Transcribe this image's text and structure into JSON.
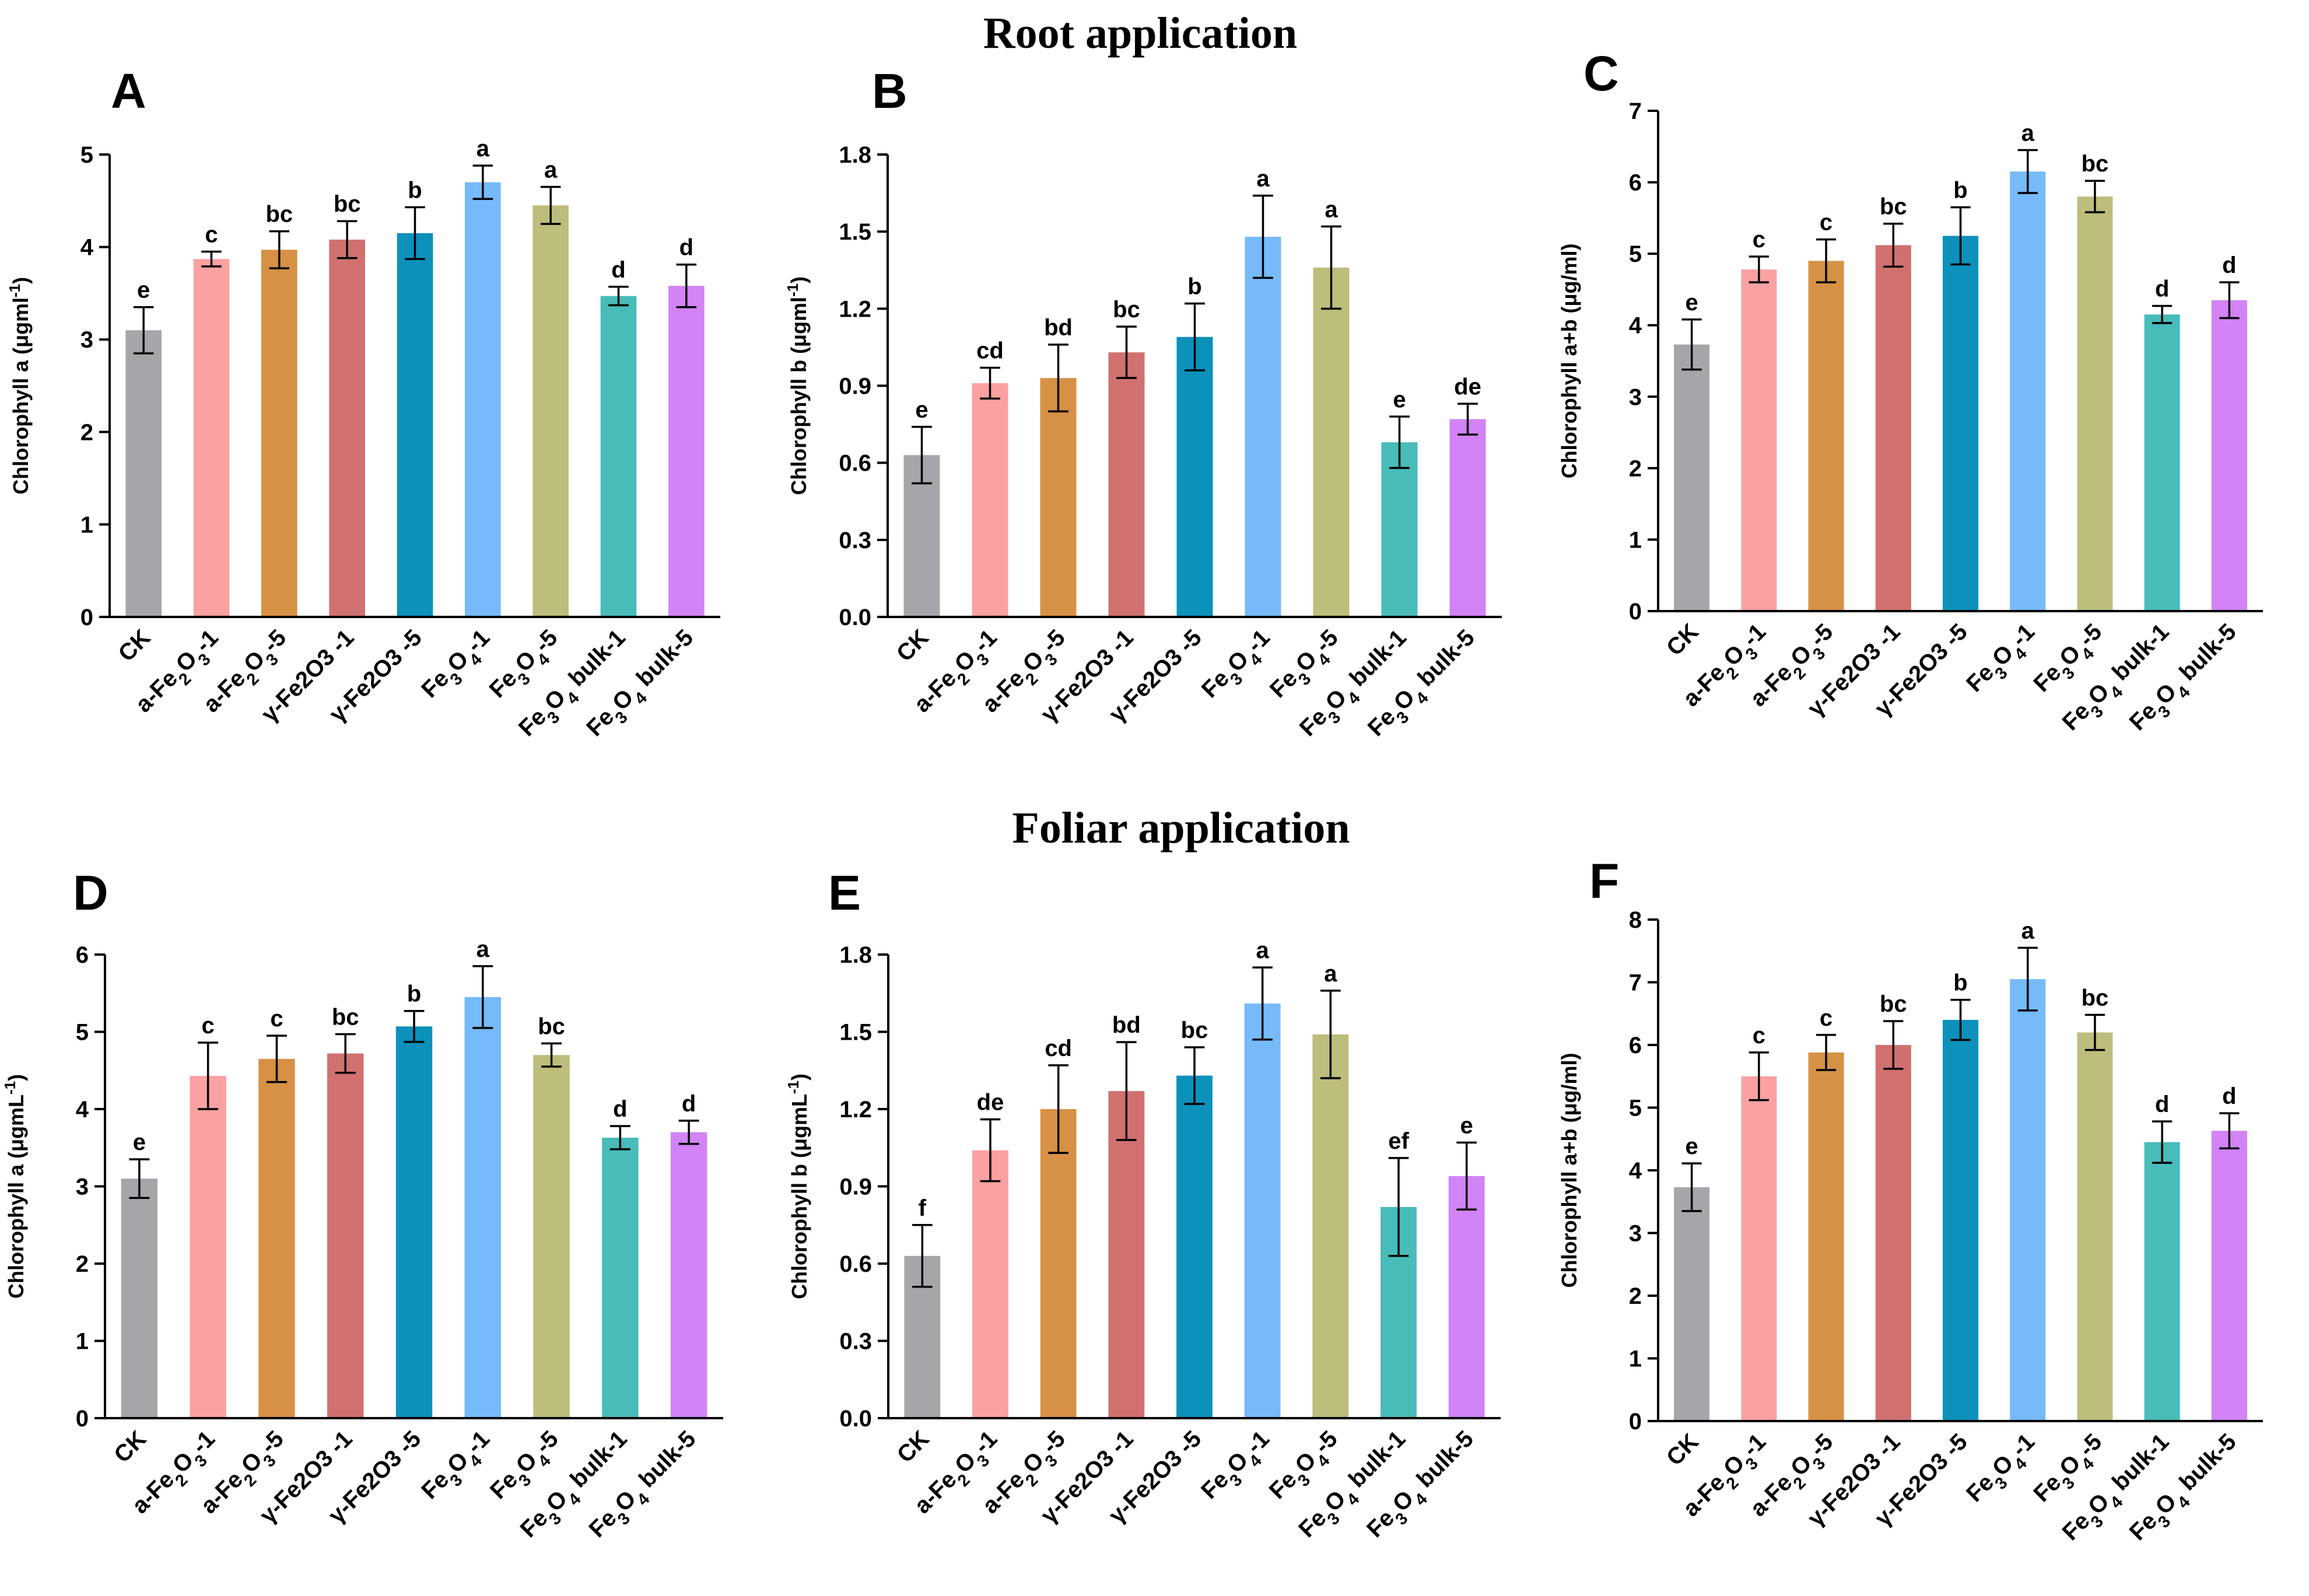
{
  "sections": [
    {
      "id": "root",
      "title": "Root application"
    },
    {
      "id": "foliar",
      "title": "Foliar application"
    }
  ],
  "chart_data": [
    {
      "panel": "A",
      "section": "root",
      "type": "bar",
      "ylabel": "Chlorophyll a (μgml⁻¹)",
      "ylim": [
        0,
        5
      ],
      "yticks": [
        0,
        1,
        2,
        3,
        4,
        5
      ],
      "ytick_labels": [
        "0",
        "1",
        "2",
        "3",
        "4",
        "5"
      ],
      "categories": [
        "CK",
        "a-Fe₂O₃-1",
        "a-Fe₂O₃-5",
        "γ-Fe2O3 -1",
        "γ-Fe2O3 -5",
        "Fe₃O₄-1",
        "Fe₃O₄-5",
        "Fe₃O₄ bulk-1",
        "Fe₃O₄ bulk-5"
      ],
      "values": [
        3.1,
        3.87,
        3.97,
        4.08,
        4.15,
        4.7,
        4.45,
        3.47,
        3.58
      ],
      "errors": [
        0.25,
        0.08,
        0.2,
        0.2,
        0.28,
        0.18,
        0.2,
        0.1,
        0.23
      ],
      "letters": [
        "e",
        "c",
        "bc",
        "bc",
        "b",
        "a",
        "a",
        "d",
        "d"
      ]
    },
    {
      "panel": "B",
      "section": "root",
      "type": "bar",
      "ylabel": "Chlorophyll b (μgml⁻¹)",
      "ylim": [
        0,
        1.8
      ],
      "yticks": [
        0,
        0.3,
        0.6,
        0.9,
        1.2,
        1.5,
        1.8
      ],
      "ytick_labels": [
        "0.0",
        "0.3",
        "0.6",
        "0.9",
        "1.2",
        "1.5",
        "1.8"
      ],
      "categories": [
        "CK",
        "a-Fe₂O₃-1",
        "a-Fe₂O₃-5",
        "γ-Fe2O3 -1",
        "γ-Fe2O3 -5",
        "Fe₃O₄-1",
        "Fe₃O₄-5",
        "Fe₃O₄ bulk-1",
        "Fe₃O₄ bulk-5"
      ],
      "values": [
        0.63,
        0.91,
        0.93,
        1.03,
        1.09,
        1.48,
        1.36,
        0.68,
        0.77
      ],
      "errors": [
        0.11,
        0.06,
        0.13,
        0.1,
        0.13,
        0.16,
        0.16,
        0.1,
        0.06
      ],
      "letters": [
        "e",
        "cd",
        "bd",
        "bc",
        "b",
        "a",
        "a",
        "e",
        "de"
      ]
    },
    {
      "panel": "C",
      "section": "root",
      "type": "bar",
      "ylabel": "Chlorophyll a+b (μg/ml)",
      "ylim": [
        0,
        7
      ],
      "yticks": [
        0,
        1,
        2,
        3,
        4,
        5,
        6,
        7
      ],
      "ytick_labels": [
        "0",
        "1",
        "2",
        "3",
        "4",
        "5",
        "6",
        "7"
      ],
      "categories": [
        "CK",
        "a-Fe₂O₃-1",
        "a-Fe₂O₃-5",
        "γ-Fe2O3 -1",
        "γ-Fe2O3 -5",
        "Fe₃O₄-1",
        "Fe₃O₄-5",
        "Fe₃O₄ bulk-1",
        "Fe₃O₄ bulk-5"
      ],
      "values": [
        3.73,
        4.78,
        4.9,
        5.12,
        5.25,
        6.15,
        5.8,
        4.15,
        4.35
      ],
      "errors": [
        0.35,
        0.18,
        0.3,
        0.3,
        0.4,
        0.3,
        0.22,
        0.12,
        0.25
      ],
      "letters": [
        "e",
        "c",
        "c",
        "bc",
        "b",
        "a",
        "bc",
        "d",
        "d"
      ]
    },
    {
      "panel": "D",
      "section": "foliar",
      "type": "bar",
      "ylabel": "Chlorophyll a (μgmL⁻¹)",
      "ylim": [
        0,
        6
      ],
      "yticks": [
        0,
        1,
        2,
        3,
        4,
        5,
        6
      ],
      "ytick_labels": [
        "0",
        "1",
        "2",
        "3",
        "4",
        "5",
        "6"
      ],
      "categories": [
        "CK",
        "a-Fe₂O₃-1",
        "a-Fe₂O₃-5",
        "γ-Fe2O3 -1",
        "γ-Fe2O3 -5",
        "Fe₃O₄-1",
        "Fe₃O₄-5",
        "Fe₃O₄ bulk-1",
        "Fe₃O₄ bulk-5"
      ],
      "values": [
        3.1,
        4.43,
        4.65,
        4.72,
        5.07,
        5.45,
        4.7,
        3.63,
        3.7
      ],
      "errors": [
        0.25,
        0.43,
        0.3,
        0.25,
        0.2,
        0.4,
        0.15,
        0.15,
        0.15
      ],
      "letters": [
        "e",
        "c",
        "c",
        "bc",
        "b",
        "a",
        "bc",
        "d",
        "d"
      ]
    },
    {
      "panel": "E",
      "section": "foliar",
      "type": "bar",
      "ylabel": "Chlorophyll b (μgmL⁻¹)",
      "ylim": [
        0,
        1.8
      ],
      "yticks": [
        0,
        0.3,
        0.6,
        0.9,
        1.2,
        1.5,
        1.8
      ],
      "ytick_labels": [
        "0.0",
        "0.3",
        "0.6",
        "0.9",
        "1.2",
        "1.5",
        "1.8"
      ],
      "categories": [
        "CK",
        "a-Fe₂O₃-1",
        "a-Fe₂O₃-5",
        "γ-Fe2O3 -1",
        "γ-Fe2O3 -5",
        "Fe₃O₄-1",
        "Fe₃O₄-5",
        "Fe₃O₄ bulk-1",
        "Fe₃O₄ bulk-5"
      ],
      "values": [
        0.63,
        1.04,
        1.2,
        1.27,
        1.33,
        1.61,
        1.49,
        0.82,
        0.94
      ],
      "errors": [
        0.12,
        0.12,
        0.17,
        0.19,
        0.11,
        0.14,
        0.17,
        0.19,
        0.13
      ],
      "letters": [
        "f",
        "de",
        "cd",
        "bd",
        "bc",
        "a",
        "a",
        "ef",
        "e"
      ]
    },
    {
      "panel": "F",
      "section": "foliar",
      "type": "bar",
      "ylabel": "Chlorophyll a+b (μg/ml)",
      "ylim": [
        0,
        8
      ],
      "yticks": [
        0,
        1,
        2,
        3,
        4,
        5,
        6,
        7,
        8
      ],
      "ytick_labels": [
        "0",
        "1",
        "2",
        "3",
        "4",
        "5",
        "6",
        "7",
        "8"
      ],
      "categories": [
        "CK",
        "a-Fe₂O₃-1",
        "a-Fe₂O₃-5",
        "γ-Fe2O3 -1",
        "γ-Fe2O3 -5",
        "Fe₃O₄-1",
        "Fe₃O₄-5",
        "Fe₃O₄ bulk-1",
        "Fe₃O₄ bulk-5"
      ],
      "values": [
        3.73,
        5.5,
        5.88,
        6.0,
        6.4,
        7.05,
        6.2,
        4.45,
        4.63
      ],
      "errors": [
        0.38,
        0.38,
        0.28,
        0.38,
        0.32,
        0.5,
        0.28,
        0.33,
        0.28
      ],
      "letters": [
        "e",
        "c",
        "c",
        "bc",
        "b",
        "a",
        "bc",
        "d",
        "d"
      ]
    }
  ],
  "colors": [
    "#a6a5aa",
    "#fba1a1",
    "#d69145",
    "#d07170",
    "#0c91bb",
    "#76baf9",
    "#bdbd7c",
    "#47bcb9",
    "#d283f5"
  ]
}
